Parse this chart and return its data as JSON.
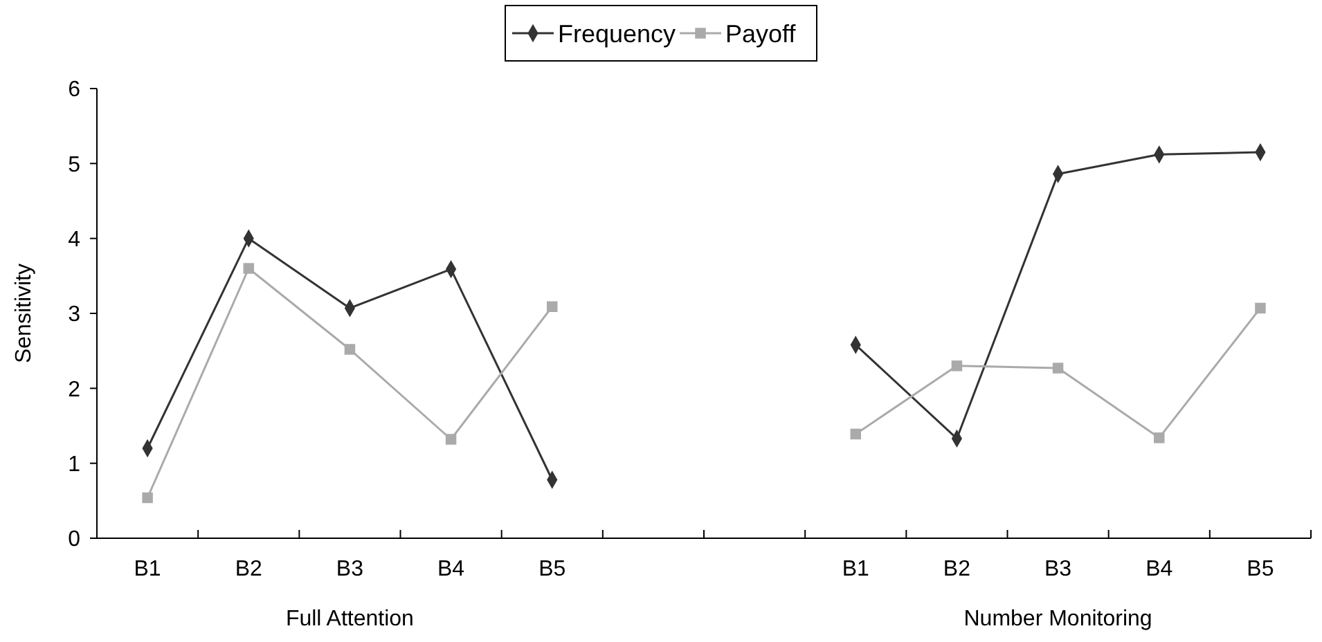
{
  "chart_data": {
    "type": "line",
    "ylabel": "Sensitivity",
    "categories": [
      "B1",
      "B2",
      "B3",
      "B4",
      "B5",
      null,
      null,
      "B1",
      "B2",
      "B3",
      "B4",
      "B5"
    ],
    "series": [
      {
        "name": "Frequency",
        "color": "#333333",
        "marker": "diamond",
        "values": [
          1.2,
          4.0,
          3.07,
          3.59,
          0.78,
          null,
          null,
          2.58,
          1.33,
          4.86,
          5.12,
          5.15
        ]
      },
      {
        "name": "Payoff",
        "color": "#aaaaaa",
        "marker": "square",
        "values": [
          0.54,
          3.6,
          2.52,
          1.32,
          3.09,
          null,
          null,
          1.39,
          2.3,
          2.27,
          1.34,
          3.07
        ]
      }
    ],
    "ylim": [
      0,
      6
    ],
    "yticks": [
      0,
      1,
      2,
      3,
      4,
      5,
      6
    ],
    "grid": false,
    "legend": "top",
    "annotations": [
      "Full Attention",
      "Number Monitoring"
    ]
  }
}
